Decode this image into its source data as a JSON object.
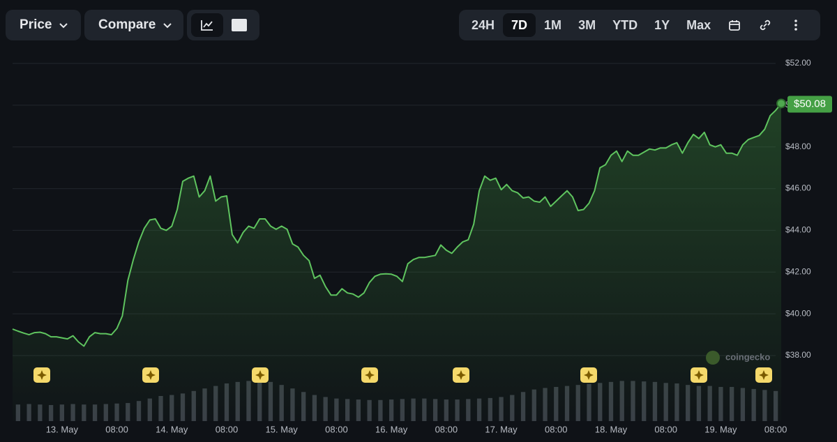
{
  "toolbar": {
    "menus": [
      "Price",
      "Compare"
    ],
    "ranges": [
      "24H",
      "7D",
      "1M",
      "3M",
      "YTD",
      "1Y",
      "Max"
    ],
    "selected_range": "7D"
  },
  "watermark": "coingecko",
  "chart_data": {
    "type": "line",
    "color": "#5fc45f",
    "grid": true,
    "xlim": [
      0,
      140
    ],
    "xticks": [
      {
        "value": 9,
        "label": "13. May"
      },
      {
        "value": 19,
        "label": "08:00"
      },
      {
        "value": 29,
        "label": "14. May"
      },
      {
        "value": 39,
        "label": "08:00"
      },
      {
        "value": 49,
        "label": "15. May"
      },
      {
        "value": 59,
        "label": "08:00"
      },
      {
        "value": 69,
        "label": "16. May"
      },
      {
        "value": 79,
        "label": "08:00"
      },
      {
        "value": 89,
        "label": "17. May"
      },
      {
        "value": 99,
        "label": "08:00"
      },
      {
        "value": 109,
        "label": "18. May"
      },
      {
        "value": 119,
        "label": "08:00"
      },
      {
        "value": 129,
        "label": "19. May"
      },
      {
        "value": 139,
        "label": "08:00"
      }
    ],
    "ylim": [
      38,
      52
    ],
    "yticks": [
      {
        "value": 38,
        "label": "$38.00"
      },
      {
        "value": 40,
        "label": "$40.00"
      },
      {
        "value": 42,
        "label": "$42.00"
      },
      {
        "value": 44,
        "label": "$44.00"
      },
      {
        "value": 46,
        "label": "$46.00"
      },
      {
        "value": 48,
        "label": "$48.00"
      },
      {
        "value": 50,
        "label": "$50.00"
      },
      {
        "value": 52,
        "label": "$52.00"
      }
    ],
    "values": [
      39.27,
      39.17,
      39.08,
      39.0,
      39.1,
      39.12,
      39.05,
      38.9,
      38.9,
      38.85,
      38.8,
      38.95,
      38.65,
      38.45,
      38.9,
      39.1,
      39.05,
      39.05,
      39.0,
      39.3,
      39.9,
      41.6,
      42.6,
      43.45,
      44.1,
      44.5,
      44.55,
      44.1,
      44.0,
      44.2,
      45.0,
      46.35,
      46.5,
      46.6,
      45.6,
      45.9,
      46.6,
      45.4,
      45.6,
      45.65,
      43.8,
      43.4,
      43.9,
      44.2,
      44.1,
      44.55,
      44.55,
      44.2,
      44.05,
      44.2,
      44.05,
      43.35,
      43.2,
      42.8,
      42.55,
      41.7,
      41.85,
      41.3,
      40.9,
      40.9,
      41.2,
      41.0,
      40.95,
      40.8,
      41.0,
      41.5,
      41.8,
      41.9,
      41.92,
      41.9,
      41.8,
      41.55,
      42.4,
      42.6,
      42.7,
      42.7,
      42.75,
      42.8,
      43.3,
      43.05,
      42.9,
      43.2,
      43.45,
      43.55,
      44.3,
      45.9,
      46.6,
      46.4,
      46.5,
      45.95,
      46.2,
      45.9,
      45.8,
      45.55,
      45.6,
      45.4,
      45.35,
      45.6,
      45.15,
      45.4,
      45.65,
      45.9,
      45.6,
      44.95,
      45.0,
      45.3,
      45.9,
      47.0,
      47.15,
      47.6,
      47.8,
      47.3,
      47.8,
      47.6,
      47.6,
      47.75,
      47.9,
      47.85,
      47.95,
      47.95,
      48.1,
      48.2,
      47.7,
      48.2,
      48.6,
      48.4,
      48.7,
      48.1,
      48.0,
      48.1,
      47.7,
      47.7,
      47.6,
      48.1,
      48.35,
      48.45,
      48.55,
      48.85,
      49.5,
      49.75,
      50.08
    ],
    "value_labels": [
      null,
      null,
      null,
      null,
      null,
      null,
      null,
      null,
      null,
      null,
      null,
      null,
      null,
      null,
      null,
      null,
      null,
      null,
      null,
      null,
      null,
      null,
      null,
      null,
      null,
      null,
      null,
      null,
      null,
      null,
      null,
      null,
      null,
      null,
      null,
      null,
      null,
      null,
      null,
      null,
      null,
      null,
      null,
      null,
      null,
      null,
      null,
      null,
      null,
      null,
      null,
      null,
      null,
      null,
      null,
      null,
      null,
      null,
      null,
      null,
      null,
      null,
      null,
      null,
      null,
      null,
      null,
      null,
      null,
      null,
      null,
      null,
      null,
      null,
      null,
      null,
      null,
      null,
      null,
      null,
      null,
      null,
      null,
      null,
      null,
      null,
      null,
      null,
      null,
      null,
      null,
      null,
      null,
      null,
      null,
      null,
      null,
      null,
      null,
      null,
      null,
      null,
      null,
      null,
      null,
      null,
      null,
      null,
      null,
      null,
      null,
      null,
      null,
      null,
      null,
      null,
      null,
      null,
      null,
      null,
      null,
      null,
      null,
      null,
      null,
      null,
      null,
      null,
      null,
      null,
      null,
      null,
      null,
      null,
      null,
      null,
      null,
      null,
      null,
      null,
      "$50.08"
    ],
    "volume": {
      "color": "#3a3f47",
      "ylim": [
        0,
        100
      ],
      "values": [
        33,
        34,
        33,
        32,
        33,
        34,
        33,
        33,
        34,
        35,
        36,
        40,
        45,
        50,
        52,
        55,
        60,
        65,
        70,
        75,
        78,
        80,
        80,
        78,
        72,
        65,
        58,
        52,
        48,
        45,
        44,
        43,
        42,
        42,
        43,
        44,
        45,
        45,
        44,
        43,
        43,
        44,
        45,
        46,
        48,
        52,
        58,
        63,
        66,
        68,
        70,
        72,
        74,
        76,
        78,
        80,
        80,
        79,
        78,
        76,
        75,
        72,
        70,
        70,
        68,
        68,
        66,
        64,
        62,
        60
      ]
    }
  }
}
